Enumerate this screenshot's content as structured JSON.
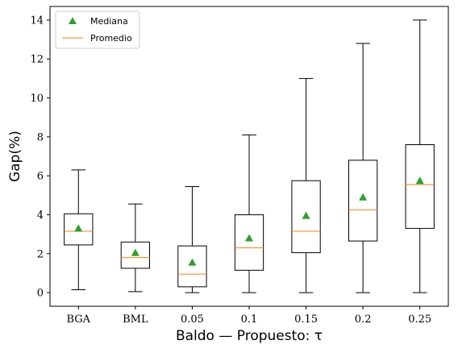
{
  "chart_data": {
    "type": "box",
    "categories": [
      "BGA",
      "BML",
      "0.05",
      "0.1",
      "0.15",
      "0.2",
      "0.25"
    ],
    "boxes": [
      {
        "whisker_low": 0.15,
        "q1": 2.45,
        "median": 3.15,
        "q3": 4.05,
        "whisker_high": 6.3,
        "marker": 3.3
      },
      {
        "whisker_low": 0.05,
        "q1": 1.25,
        "median": 1.8,
        "q3": 2.6,
        "whisker_high": 4.55,
        "marker": 2.05
      },
      {
        "whisker_low": 0.0,
        "q1": 0.3,
        "median": 0.95,
        "q3": 2.4,
        "whisker_high": 5.45,
        "marker": 1.55
      },
      {
        "whisker_low": 0.0,
        "q1": 1.15,
        "median": 2.3,
        "q3": 4.0,
        "whisker_high": 8.1,
        "marker": 2.8
      },
      {
        "whisker_low": 0.0,
        "q1": 2.05,
        "median": 3.15,
        "q3": 5.75,
        "whisker_high": 11.0,
        "marker": 3.95
      },
      {
        "whisker_low": 0.0,
        "q1": 2.65,
        "median": 4.25,
        "q3": 6.8,
        "whisker_high": 12.8,
        "marker": 4.9
      },
      {
        "whisker_low": 0.0,
        "q1": 3.3,
        "median": 5.55,
        "q3": 7.6,
        "whisker_high": 14.0,
        "marker": 5.75
      }
    ],
    "legend": [
      {
        "label": "Mediana",
        "marker": "triangle",
        "color": "#2ca02c"
      },
      {
        "label": "Promedio",
        "marker": "line",
        "color": "#ff7f0e"
      }
    ],
    "legend_position": "top-left",
    "xlabel": "Baldo — Propuesto: τ",
    "ylabel": "Gap(%)",
    "ylim": [
      -0.7,
      14.7
    ],
    "yticks": [
      0,
      2,
      4,
      6,
      8,
      10,
      12,
      14
    ],
    "grid": false,
    "colors": {
      "box": "#000000",
      "median_line": "#ff7f0e",
      "marker": "#2ca02c"
    }
  }
}
